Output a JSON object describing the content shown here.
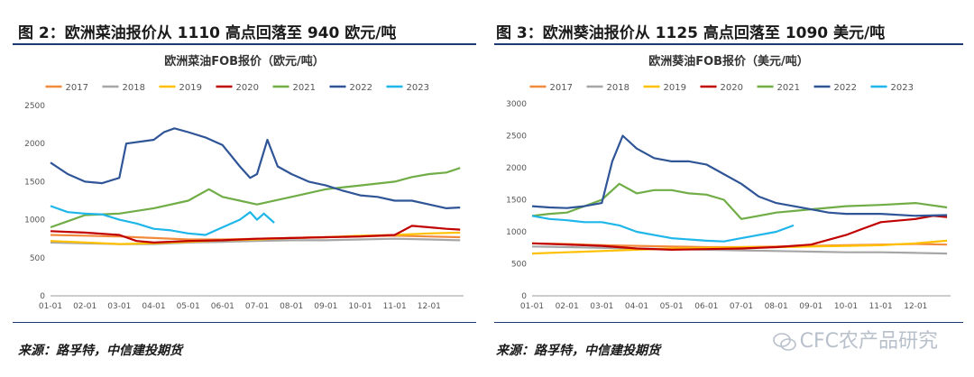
{
  "left": {
    "figure_title": "图 2：欧洲菜油报价从 1110 高点回落至 940 欧元/吨",
    "source": "来源：路孚特，中信建投期货"
  },
  "right": {
    "figure_title": "图 3：欧洲葵油报价从 1125 高点回落至 1090 美元/吨",
    "source": "来源：路孚特，中信建投期货"
  },
  "watermark": "CFC农产品研究",
  "chart_data": [
    {
      "type": "line",
      "title": "欧洲菜油FOB报价（欧元/吨）",
      "xlabel": "",
      "ylabel": "",
      "ylim": [
        0,
        2500
      ],
      "yticks": [
        0,
        500,
        1000,
        1500,
        2000,
        2500
      ],
      "xlim": [
        0,
        12
      ],
      "xtick_labels": [
        "01-01",
        "02-01",
        "03-01",
        "04-01",
        "05-01",
        "06-01",
        "07-01",
        "08-01",
        "09-01",
        "10-01",
        "11-01",
        "12-01"
      ],
      "legend_position": "top",
      "series": [
        {
          "name": "2017",
          "color": "#f28a3c",
          "x": [
            0,
            1,
            2,
            3,
            4,
            5,
            6,
            7,
            8,
            9,
            10,
            11,
            11.9
          ],
          "y": [
            800,
            790,
            780,
            760,
            740,
            740,
            750,
            760,
            770,
            780,
            790,
            780,
            770
          ]
        },
        {
          "name": "2018",
          "color": "#a6a6a6",
          "x": [
            0,
            1,
            2,
            3,
            4,
            5,
            6,
            7,
            8,
            9,
            10,
            11,
            11.9
          ],
          "y": [
            700,
            690,
            680,
            680,
            700,
            710,
            720,
            730,
            730,
            740,
            750,
            740,
            730
          ]
        },
        {
          "name": "2019",
          "color": "#ffc000",
          "x": [
            0,
            1,
            2,
            3,
            4,
            5,
            6,
            7,
            8,
            9,
            10,
            11,
            11.9
          ],
          "y": [
            720,
            700,
            680,
            690,
            710,
            730,
            740,
            760,
            770,
            790,
            800,
            820,
            830
          ]
        },
        {
          "name": "2020",
          "color": "#c00000",
          "x": [
            0,
            1,
            2,
            2.5,
            3,
            4,
            5,
            6,
            7,
            8,
            9,
            10,
            10.5,
            11,
            11.5,
            11.9
          ],
          "y": [
            850,
            830,
            800,
            720,
            700,
            720,
            730,
            750,
            760,
            770,
            780,
            800,
            920,
            900,
            880,
            870
          ]
        },
        {
          "name": "2021",
          "color": "#70ad47",
          "x": [
            0,
            0.5,
            1,
            2,
            3,
            4,
            4.6,
            5,
            5.5,
            6,
            7,
            8,
            9,
            10,
            10.5,
            11,
            11.5,
            11.9
          ],
          "y": [
            900,
            980,
            1060,
            1080,
            1150,
            1250,
            1400,
            1300,
            1250,
            1200,
            1300,
            1400,
            1450,
            1500,
            1560,
            1600,
            1620,
            1680
          ]
        },
        {
          "name": "2022",
          "color": "#2f5597",
          "x": [
            0,
            0.5,
            1,
            1.5,
            2,
            2.2,
            3,
            3.3,
            3.6,
            4,
            4.5,
            5,
            5.5,
            5.8,
            6,
            6.3,
            6.6,
            7,
            7.5,
            8,
            8.5,
            9,
            9.5,
            10,
            10.5,
            11,
            11.5,
            11.9
          ],
          "y": [
            1750,
            1600,
            1500,
            1480,
            1550,
            2000,
            2050,
            2150,
            2200,
            2150,
            2080,
            1980,
            1700,
            1550,
            1600,
            2050,
            1700,
            1600,
            1500,
            1450,
            1380,
            1320,
            1300,
            1250,
            1250,
            1200,
            1150,
            1160
          ]
        },
        {
          "name": "2023",
          "color": "#1fb6ea",
          "x": [
            0,
            0.5,
            1,
            1.5,
            2,
            2.5,
            3,
            3.5,
            4,
            4.5,
            5,
            5.5,
            5.8,
            6,
            6.2,
            6.5
          ],
          "y": [
            1180,
            1100,
            1080,
            1070,
            1000,
            950,
            880,
            860,
            820,
            800,
            900,
            1000,
            1100,
            1000,
            1080,
            960
          ]
        }
      ]
    },
    {
      "type": "line",
      "title": "欧洲葵油FOB报价（美元/吨）",
      "xlabel": "",
      "ylabel": "",
      "ylim": [
        0,
        3000
      ],
      "yticks": [
        0,
        500,
        1000,
        1500,
        2000,
        2500,
        3000
      ],
      "xlim": [
        0,
        12
      ],
      "xtick_labels": [
        "01-01",
        "02-01",
        "03-01",
        "04-01",
        "05-01",
        "06-01",
        "07-01",
        "08-01",
        "09-01",
        "10-01",
        "11-01",
        "12-01"
      ],
      "legend_position": "top",
      "series": [
        {
          "name": "2017",
          "color": "#f28a3c",
          "x": [
            0,
            1,
            2,
            3,
            4,
            5,
            6,
            7,
            8,
            9,
            10,
            11,
            11.9
          ],
          "y": [
            820,
            810,
            790,
            780,
            770,
            760,
            760,
            770,
            780,
            790,
            800,
            810,
            800
          ]
        },
        {
          "name": "2018",
          "color": "#a6a6a6",
          "x": [
            0,
            1,
            2,
            3,
            4,
            5,
            6,
            7,
            8,
            9,
            10,
            11,
            11.9
          ],
          "y": [
            770,
            760,
            750,
            740,
            730,
            720,
            710,
            700,
            690,
            680,
            680,
            670,
            660
          ]
        },
        {
          "name": "2019",
          "color": "#ffc000",
          "x": [
            0,
            1,
            2,
            3,
            4,
            5,
            6,
            7,
            8,
            9,
            10,
            11,
            11.9
          ],
          "y": [
            660,
            680,
            700,
            720,
            740,
            750,
            760,
            760,
            770,
            780,
            790,
            820,
            860
          ]
        },
        {
          "name": "2020",
          "color": "#c00000",
          "x": [
            0,
            1,
            2,
            3,
            4,
            5,
            6,
            7,
            8,
            9,
            9.5,
            10,
            11,
            11.5,
            11.9
          ],
          "y": [
            820,
            800,
            780,
            740,
            720,
            730,
            740,
            760,
            800,
            950,
            1050,
            1150,
            1200,
            1250,
            1230
          ]
        },
        {
          "name": "2021",
          "color": "#70ad47",
          "x": [
            0,
            0.5,
            1,
            1.5,
            2,
            2.5,
            3,
            3.5,
            4,
            4.5,
            5,
            5.5,
            6,
            6.5,
            7,
            8,
            9,
            10,
            11,
            11.9
          ],
          "y": [
            1250,
            1280,
            1300,
            1400,
            1500,
            1750,
            1600,
            1650,
            1650,
            1600,
            1580,
            1500,
            1200,
            1250,
            1300,
            1350,
            1400,
            1420,
            1450,
            1380
          ]
        },
        {
          "name": "2022",
          "color": "#2f5597",
          "x": [
            0,
            0.5,
            1,
            1.5,
            2,
            2.3,
            2.6,
            3,
            3.5,
            4,
            4.5,
            5,
            5.5,
            6,
            6.5,
            7,
            7.5,
            8,
            8.5,
            9,
            10,
            11,
            11.9
          ],
          "y": [
            1400,
            1380,
            1370,
            1400,
            1450,
            2100,
            2500,
            2300,
            2150,
            2100,
            2100,
            2050,
            1900,
            1750,
            1550,
            1450,
            1400,
            1350,
            1300,
            1280,
            1280,
            1250,
            1260
          ]
        },
        {
          "name": "2023",
          "color": "#1fb6ea",
          "x": [
            0,
            0.5,
            1,
            1.5,
            2,
            2.5,
            3,
            3.5,
            4,
            4.5,
            5,
            5.5,
            6,
            6.5,
            7,
            7.5
          ],
          "y": [
            1250,
            1200,
            1180,
            1150,
            1150,
            1100,
            1000,
            950,
            900,
            880,
            860,
            850,
            900,
            950,
            1000,
            1100
          ]
        }
      ]
    }
  ]
}
